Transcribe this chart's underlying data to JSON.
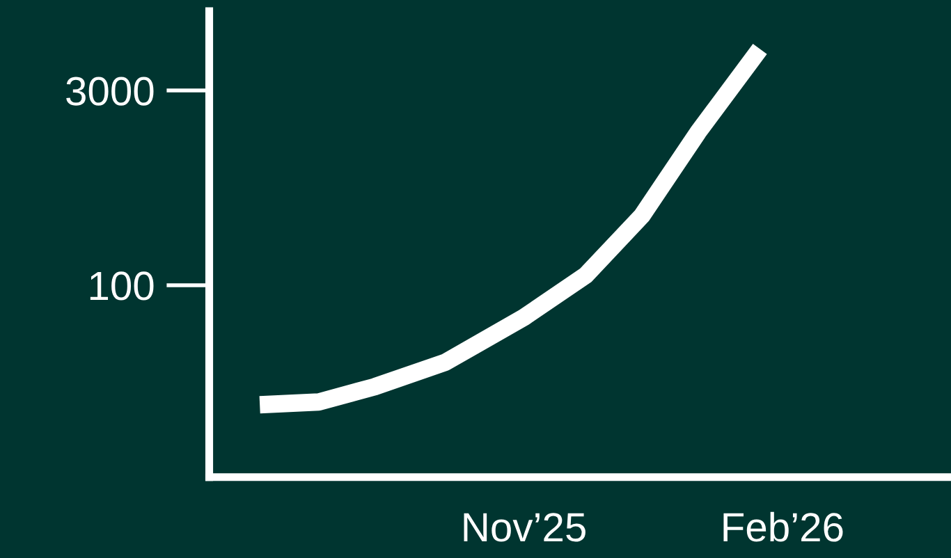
{
  "chart_data": {
    "type": "line",
    "log": "y",
    "x": [
      "2025-07-30",
      "2025-08-20",
      "2025-09-09",
      "2025-10-04",
      "2025-11-01",
      "2025-11-23",
      "2025-12-13",
      "2026-01-02",
      "2026-01-24"
    ],
    "series": [
      {
        "color": "#ffffff",
        "values": [
          12.4,
          13,
          17,
          26,
          57,
          119,
          337,
          1450,
          6200
        ]
      }
    ],
    "xlim": [
      "2025-07-12",
      "2026-04-02"
    ],
    "xticks": [
      {
        "value": "2025-11-01",
        "label": "Nov’25"
      },
      {
        "value": "2026-02-01",
        "label": "Feb’26"
      }
    ],
    "ylim": [
      3.5,
      12000
    ],
    "yticks": [
      100,
      3000
    ],
    "grid": false,
    "marker": "none",
    "line_style": "solid"
  }
}
